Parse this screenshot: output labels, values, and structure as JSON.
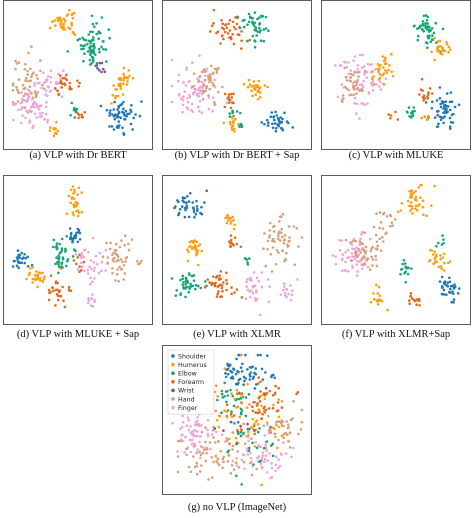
{
  "colors": {
    "Shoulder": "#1f77b4",
    "Humerus": "#ff9f10",
    "Elbow": "#17a576",
    "Forearm": "#e36a1b",
    "Wrist": "#7f4fa8",
    "Hand": "#d6a07a",
    "Finger": "#eda6da"
  },
  "chart_data": [
    {
      "type": "scatter",
      "caption": "(a) VLP with Dr BERT",
      "clusters": [
        {
          "label": "Humerus",
          "cx": 0.4,
          "cy": 0.13,
          "sx": 0.04,
          "sy": 0.05,
          "n": 40
        },
        {
          "label": "Elbow",
          "cx": 0.6,
          "cy": 0.3,
          "sx": 0.05,
          "sy": 0.08,
          "n": 70
        },
        {
          "label": "Wrist",
          "cx": 0.66,
          "cy": 0.45,
          "sx": 0.02,
          "sy": 0.03,
          "n": 8
        },
        {
          "label": "Hand",
          "cx": 0.13,
          "cy": 0.57,
          "sx": 0.07,
          "sy": 0.09,
          "n": 60
        },
        {
          "label": "Finger",
          "cx": 0.18,
          "cy": 0.72,
          "sx": 0.08,
          "sy": 0.07,
          "n": 60
        },
        {
          "label": "Finger",
          "cx": 0.3,
          "cy": 0.55,
          "sx": 0.05,
          "sy": 0.05,
          "n": 30
        },
        {
          "label": "Forearm",
          "cx": 0.42,
          "cy": 0.58,
          "sx": 0.04,
          "sy": 0.05,
          "n": 25
        },
        {
          "label": "Humerus",
          "cx": 0.82,
          "cy": 0.57,
          "sx": 0.04,
          "sy": 0.05,
          "n": 35
        },
        {
          "label": "Shoulder",
          "cx": 0.81,
          "cy": 0.8,
          "sx": 0.05,
          "sy": 0.06,
          "n": 55
        },
        {
          "label": "Elbow",
          "cx": 0.47,
          "cy": 0.73,
          "sx": 0.02,
          "sy": 0.03,
          "n": 10
        },
        {
          "label": "Forearm",
          "cx": 0.52,
          "cy": 0.78,
          "sx": 0.02,
          "sy": 0.02,
          "n": 8
        },
        {
          "label": "Humerus",
          "cx": 0.33,
          "cy": 0.9,
          "sx": 0.02,
          "sy": 0.03,
          "n": 12
        }
      ]
    },
    {
      "type": "scatter",
      "caption": "(b) VLP with Dr BERT + Sap",
      "clusters": [
        {
          "label": "Forearm",
          "cx": 0.44,
          "cy": 0.18,
          "sx": 0.06,
          "sy": 0.06,
          "n": 40
        },
        {
          "label": "Elbow",
          "cx": 0.63,
          "cy": 0.15,
          "sx": 0.05,
          "sy": 0.07,
          "n": 45
        },
        {
          "label": "Finger",
          "cx": 0.2,
          "cy": 0.62,
          "sx": 0.08,
          "sy": 0.1,
          "n": 75
        },
        {
          "label": "Hand",
          "cx": 0.28,
          "cy": 0.55,
          "sx": 0.05,
          "sy": 0.06,
          "n": 45
        },
        {
          "label": "Humerus",
          "cx": 0.64,
          "cy": 0.6,
          "sx": 0.04,
          "sy": 0.04,
          "n": 30
        },
        {
          "label": "Forearm",
          "cx": 0.44,
          "cy": 0.67,
          "sx": 0.03,
          "sy": 0.04,
          "n": 15
        },
        {
          "label": "Elbow",
          "cx": 0.47,
          "cy": 0.78,
          "sx": 0.02,
          "sy": 0.02,
          "n": 8
        },
        {
          "label": "Humerus",
          "cx": 0.47,
          "cy": 0.85,
          "sx": 0.03,
          "sy": 0.03,
          "n": 15
        },
        {
          "label": "Shoulder",
          "cx": 0.78,
          "cy": 0.84,
          "sx": 0.05,
          "sy": 0.04,
          "n": 35
        },
        {
          "label": "Elbow",
          "cx": 0.53,
          "cy": 0.88,
          "sx": 0.01,
          "sy": 0.02,
          "n": 6
        }
      ]
    },
    {
      "type": "scatter",
      "caption": "(c) VLP with MLUKE",
      "clusters": [
        {
          "label": "Elbow",
          "cx": 0.73,
          "cy": 0.18,
          "sx": 0.05,
          "sy": 0.06,
          "n": 50
        },
        {
          "label": "Humerus",
          "cx": 0.83,
          "cy": 0.32,
          "sx": 0.04,
          "sy": 0.04,
          "n": 25
        },
        {
          "label": "Finger",
          "cx": 0.25,
          "cy": 0.5,
          "sx": 0.08,
          "sy": 0.12,
          "n": 70
        },
        {
          "label": "Hand",
          "cx": 0.18,
          "cy": 0.58,
          "sx": 0.05,
          "sy": 0.06,
          "n": 35
        },
        {
          "label": "Humerus",
          "cx": 0.4,
          "cy": 0.45,
          "sx": 0.04,
          "sy": 0.06,
          "n": 30
        },
        {
          "label": "Shoulder",
          "cx": 0.85,
          "cy": 0.75,
          "sx": 0.05,
          "sy": 0.07,
          "n": 55
        },
        {
          "label": "Elbow",
          "cx": 0.61,
          "cy": 0.78,
          "sx": 0.02,
          "sy": 0.03,
          "n": 12
        },
        {
          "label": "Forearm",
          "cx": 0.72,
          "cy": 0.63,
          "sx": 0.03,
          "sy": 0.03,
          "n": 15
        },
        {
          "label": "Humerus",
          "cx": 0.73,
          "cy": 0.82,
          "sx": 0.02,
          "sy": 0.02,
          "n": 6
        },
        {
          "label": "Forearm",
          "cx": 0.48,
          "cy": 0.8,
          "sx": 0.02,
          "sy": 0.02,
          "n": 5
        }
      ]
    },
    {
      "type": "scatter",
      "caption": "(d) VLP with MLUKE + Sap",
      "clusters": [
        {
          "label": "Humerus",
          "cx": 0.47,
          "cy": 0.15,
          "sx": 0.03,
          "sy": 0.06,
          "n": 30
        },
        {
          "label": "Elbow",
          "cx": 0.37,
          "cy": 0.5,
          "sx": 0.04,
          "sy": 0.08,
          "n": 40
        },
        {
          "label": "Shoulder",
          "cx": 0.09,
          "cy": 0.58,
          "sx": 0.03,
          "sy": 0.04,
          "n": 25
        },
        {
          "label": "Humerus",
          "cx": 0.2,
          "cy": 0.7,
          "sx": 0.04,
          "sy": 0.04,
          "n": 25
        },
        {
          "label": "Forearm",
          "cx": 0.37,
          "cy": 0.8,
          "sx": 0.04,
          "sy": 0.05,
          "n": 30
        },
        {
          "label": "Hand",
          "cx": 0.8,
          "cy": 0.55,
          "sx": 0.06,
          "sy": 0.07,
          "n": 50
        },
        {
          "label": "Finger",
          "cx": 0.58,
          "cy": 0.6,
          "sx": 0.05,
          "sy": 0.08,
          "n": 35
        },
        {
          "label": "Shoulder",
          "cx": 0.48,
          "cy": 0.4,
          "sx": 0.03,
          "sy": 0.04,
          "n": 20
        },
        {
          "label": "Finger",
          "cx": 0.6,
          "cy": 0.86,
          "sx": 0.02,
          "sy": 0.03,
          "n": 10
        },
        {
          "label": "Forearm",
          "cx": 0.5,
          "cy": 0.6,
          "sx": 0.02,
          "sy": 0.03,
          "n": 8
        }
      ]
    },
    {
      "type": "scatter",
      "caption": "(e) VLP with XLMR",
      "clusters": [
        {
          "label": "Shoulder",
          "cx": 0.16,
          "cy": 0.2,
          "sx": 0.05,
          "sy": 0.06,
          "n": 40
        },
        {
          "label": "Humerus",
          "cx": 0.45,
          "cy": 0.27,
          "sx": 0.03,
          "sy": 0.03,
          "n": 15
        },
        {
          "label": "Hand",
          "cx": 0.8,
          "cy": 0.45,
          "sx": 0.06,
          "sy": 0.1,
          "n": 55
        },
        {
          "label": "Forearm",
          "cx": 0.47,
          "cy": 0.45,
          "sx": 0.03,
          "sy": 0.03,
          "n": 12
        },
        {
          "label": "Humerus",
          "cx": 0.2,
          "cy": 0.48,
          "sx": 0.04,
          "sy": 0.04,
          "n": 30
        },
        {
          "label": "Elbow",
          "cx": 0.14,
          "cy": 0.75,
          "sx": 0.05,
          "sy": 0.05,
          "n": 40
        },
        {
          "label": "Forearm",
          "cx": 0.37,
          "cy": 0.75,
          "sx": 0.06,
          "sy": 0.05,
          "n": 40
        },
        {
          "label": "Finger",
          "cx": 0.62,
          "cy": 0.78,
          "sx": 0.05,
          "sy": 0.06,
          "n": 30
        },
        {
          "label": "Finger",
          "cx": 0.85,
          "cy": 0.8,
          "sx": 0.03,
          "sy": 0.04,
          "n": 15
        },
        {
          "label": "Elbow",
          "cx": 0.58,
          "cy": 0.58,
          "sx": 0.02,
          "sy": 0.02,
          "n": 6
        }
      ]
    },
    {
      "type": "scatter",
      "caption": "(f) VLP with XLMR+Sap",
      "clusters": [
        {
          "label": "Humerus",
          "cx": 0.63,
          "cy": 0.15,
          "sx": 0.06,
          "sy": 0.06,
          "n": 40
        },
        {
          "label": "Finger",
          "cx": 0.18,
          "cy": 0.55,
          "sx": 0.07,
          "sy": 0.08,
          "n": 60
        },
        {
          "label": "Hand",
          "cx": 0.27,
          "cy": 0.5,
          "sx": 0.06,
          "sy": 0.07,
          "n": 45
        },
        {
          "label": "Hand",
          "cx": 0.42,
          "cy": 0.3,
          "sx": 0.04,
          "sy": 0.05,
          "n": 20
        },
        {
          "label": "Humerus",
          "cx": 0.8,
          "cy": 0.58,
          "sx": 0.04,
          "sy": 0.04,
          "n": 25
        },
        {
          "label": "Elbow",
          "cx": 0.57,
          "cy": 0.65,
          "sx": 0.02,
          "sy": 0.03,
          "n": 15
        },
        {
          "label": "Shoulder",
          "cx": 0.88,
          "cy": 0.8,
          "sx": 0.04,
          "sy": 0.05,
          "n": 35
        },
        {
          "label": "Forearm",
          "cx": 0.64,
          "cy": 0.86,
          "sx": 0.03,
          "sy": 0.03,
          "n": 15
        },
        {
          "label": "Humerus",
          "cx": 0.36,
          "cy": 0.86,
          "sx": 0.03,
          "sy": 0.03,
          "n": 15
        },
        {
          "label": "Elbow",
          "cx": 0.82,
          "cy": 0.45,
          "sx": 0.02,
          "sy": 0.02,
          "n": 6
        }
      ]
    },
    {
      "type": "scatter",
      "caption": "(g) no VLP (ImageNet)",
      "legend": [
        "Shoulder",
        "Humerus",
        "Elbow",
        "Forearm",
        "Wrist",
        "Hand",
        "Finger"
      ],
      "legend_position": "top-left",
      "clusters": [
        {
          "label": "Shoulder",
          "cx": 0.58,
          "cy": 0.16,
          "sx": 0.1,
          "sy": 0.07,
          "n": 60
        },
        {
          "label": "Elbow",
          "cx": 0.45,
          "cy": 0.35,
          "sx": 0.06,
          "sy": 0.07,
          "n": 35
        },
        {
          "label": "Humerus",
          "cx": 0.55,
          "cy": 0.5,
          "sx": 0.14,
          "sy": 0.12,
          "n": 80
        },
        {
          "label": "Forearm",
          "cx": 0.68,
          "cy": 0.38,
          "sx": 0.1,
          "sy": 0.1,
          "n": 50
        },
        {
          "label": "Finger",
          "cx": 0.2,
          "cy": 0.6,
          "sx": 0.09,
          "sy": 0.08,
          "n": 60
        },
        {
          "label": "Hand",
          "cx": 0.35,
          "cy": 0.75,
          "sx": 0.12,
          "sy": 0.09,
          "n": 70
        },
        {
          "label": "Finger",
          "cx": 0.7,
          "cy": 0.76,
          "sx": 0.1,
          "sy": 0.08,
          "n": 60
        },
        {
          "label": "Hand",
          "cx": 0.82,
          "cy": 0.55,
          "sx": 0.06,
          "sy": 0.08,
          "n": 35
        },
        {
          "label": "Wrist",
          "cx": 0.5,
          "cy": 0.62,
          "sx": 0.08,
          "sy": 0.08,
          "n": 10
        },
        {
          "label": "Elbow",
          "cx": 0.6,
          "cy": 0.66,
          "sx": 0.12,
          "sy": 0.1,
          "n": 25
        }
      ]
    }
  ]
}
